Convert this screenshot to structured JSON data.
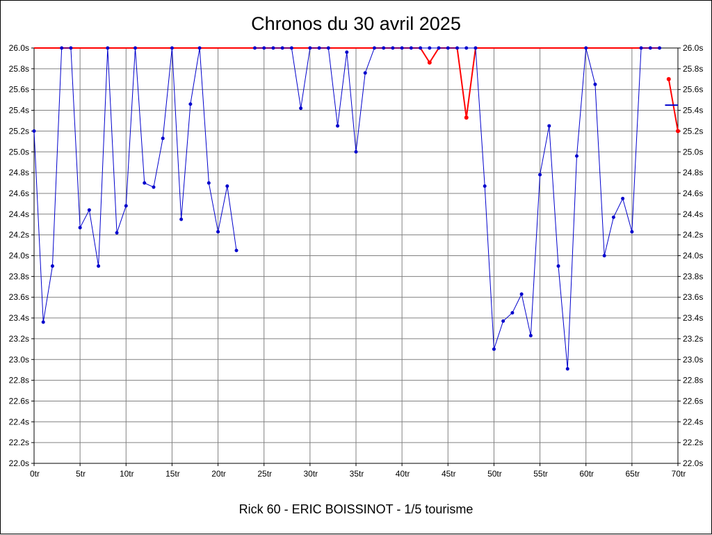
{
  "page": {
    "background": "#ffffff",
    "border_color": "#000000"
  },
  "header": {
    "title": "Chronos du 30 avril 2025"
  },
  "footer": {
    "caption": "Rick 60 - ERIC BOISSINOT - 1/5 tourisme"
  },
  "chart_data": {
    "type": "line",
    "title": "Chronos du 30 avril 2025",
    "footer_caption": "Rick 60 - ERIC BOISSINOT - 1/5 tourisme",
    "x_unit": "tr",
    "y_unit": "s",
    "xlim": [
      0,
      70
    ],
    "ylim": [
      22.0,
      26.0
    ],
    "x_tick_step": 5,
    "y_tick_step": 0.2,
    "grid": true,
    "legend": "none",
    "colors": {
      "lap_series": "#0000cc",
      "limit_series": "#ff0000",
      "grid": "#808080",
      "axis": "#000000",
      "text": "#000000"
    },
    "x_ticks": [
      {
        "value": 0,
        "label": "0tr"
      },
      {
        "value": 5,
        "label": "5tr"
      },
      {
        "value": 10,
        "label": "10tr"
      },
      {
        "value": 15,
        "label": "15tr"
      },
      {
        "value": 20,
        "label": "20tr"
      },
      {
        "value": 25,
        "label": "25tr"
      },
      {
        "value": 30,
        "label": "30tr"
      },
      {
        "value": 35,
        "label": "35tr"
      },
      {
        "value": 40,
        "label": "40tr"
      },
      {
        "value": 45,
        "label": "45tr"
      },
      {
        "value": 50,
        "label": "50tr"
      },
      {
        "value": 55,
        "label": "55tr"
      },
      {
        "value": 60,
        "label": "60tr"
      },
      {
        "value": 65,
        "label": "65tr"
      },
      {
        "value": 70,
        "label": "70tr"
      }
    ],
    "y_ticks": [
      {
        "value": 22.0,
        "label": "22.0s"
      },
      {
        "value": 22.2,
        "label": "22.2s"
      },
      {
        "value": 22.4,
        "label": "22.4s"
      },
      {
        "value": 22.6,
        "label": "22.6s"
      },
      {
        "value": 22.8,
        "label": "22.8s"
      },
      {
        "value": 23.0,
        "label": "23.0s"
      },
      {
        "value": 23.2,
        "label": "23.2s"
      },
      {
        "value": 23.4,
        "label": "23.4s"
      },
      {
        "value": 23.6,
        "label": "23.6s"
      },
      {
        "value": 23.8,
        "label": "23.8s"
      },
      {
        "value": 24.0,
        "label": "24.0s"
      },
      {
        "value": 24.2,
        "label": "24.2s"
      },
      {
        "value": 24.4,
        "label": "24.4s"
      },
      {
        "value": 24.6,
        "label": "24.6s"
      },
      {
        "value": 24.8,
        "label": "24.8s"
      },
      {
        "value": 25.0,
        "label": "25.0s"
      },
      {
        "value": 25.2,
        "label": "25.2s"
      },
      {
        "value": 25.4,
        "label": "25.4s"
      },
      {
        "value": 25.6,
        "label": "25.6s"
      },
      {
        "value": 25.8,
        "label": "25.8s"
      },
      {
        "value": 26.0,
        "label": "26.0s"
      }
    ],
    "series": [
      {
        "name": "limit-26s",
        "color": "#ff0000",
        "line_width": 2,
        "point_radius": 3,
        "segments": [
          [
            [
              0,
              26.0
            ],
            [
              42,
              26.0
            ],
            [
              43,
              25.86
            ],
            [
              44,
              26.0
            ],
            [
              46,
              26.0
            ],
            [
              47,
              25.33
            ],
            [
              48,
              26.0
            ],
            [
              68,
              26.0
            ]
          ],
          [
            [
              69,
              25.7
            ],
            [
              70,
              25.2
            ]
          ]
        ],
        "dots": [
          [
            43,
            25.86
          ],
          [
            47,
            25.33
          ],
          [
            69,
            25.7
          ],
          [
            70,
            25.2
          ]
        ]
      },
      {
        "name": "lap-times",
        "color": "#0000cc",
        "line_width": 1,
        "point_radius": 2.5,
        "segments": [
          [
            [
              0,
              25.2
            ],
            [
              1,
              23.36
            ],
            [
              2,
              23.9
            ],
            [
              3,
              26.0
            ],
            [
              4,
              26.0
            ],
            [
              5,
              24.27
            ],
            [
              6,
              24.44
            ],
            [
              7,
              23.9
            ],
            [
              8,
              26.0
            ],
            [
              9,
              24.22
            ],
            [
              10,
              24.48
            ],
            [
              11,
              26.0
            ],
            [
              12,
              24.7
            ],
            [
              13,
              24.66
            ],
            [
              14,
              25.13
            ],
            [
              15,
              26.0
            ],
            [
              16,
              24.35
            ],
            [
              17,
              25.46
            ],
            [
              18,
              26.0
            ],
            [
              19,
              24.7
            ],
            [
              20,
              24.23
            ],
            [
              21,
              24.67
            ],
            [
              22,
              24.05
            ]
          ],
          [
            [
              24,
              26.0
            ],
            [
              25,
              26.0
            ],
            [
              26,
              26.0
            ],
            [
              27,
              26.0
            ],
            [
              28,
              26.0
            ],
            [
              29,
              25.42
            ],
            [
              30,
              26.0
            ],
            [
              31,
              26.0
            ],
            [
              32,
              26.0
            ],
            [
              33,
              25.25
            ],
            [
              34,
              25.96
            ],
            [
              35,
              25.0
            ],
            [
              36,
              25.76
            ],
            [
              37,
              26.0
            ],
            [
              38,
              26.0
            ],
            [
              39,
              26.0
            ],
            [
              40,
              26.0
            ],
            [
              41,
              26.0
            ],
            [
              42,
              26.0
            ],
            [
              43,
              26.0
            ],
            [
              44,
              26.0
            ],
            [
              45,
              26.0
            ],
            [
              46,
              26.0
            ],
            [
              47,
              26.0
            ],
            [
              48,
              26.0
            ],
            [
              49,
              24.67
            ],
            [
              50,
              23.1
            ],
            [
              51,
              23.37
            ],
            [
              52,
              23.45
            ],
            [
              53,
              23.63
            ],
            [
              54,
              23.23
            ],
            [
              55,
              24.78
            ],
            [
              56,
              25.25
            ],
            [
              57,
              23.9
            ],
            [
              58,
              22.91
            ],
            [
              59,
              24.96
            ],
            [
              60,
              26.0
            ],
            [
              61,
              25.65
            ],
            [
              62,
              24.0
            ],
            [
              63,
              24.37
            ],
            [
              64,
              24.55
            ],
            [
              65,
              24.23
            ],
            [
              66,
              26.0
            ],
            [
              67,
              26.0
            ],
            [
              68,
              26.0
            ]
          ]
        ]
      }
    ],
    "markers": [
      {
        "type": "hline",
        "name": "blue-dash-marker",
        "x1": 68.6,
        "x2": 70,
        "y": 25.45,
        "color": "#0000cc",
        "width": 2
      }
    ]
  }
}
